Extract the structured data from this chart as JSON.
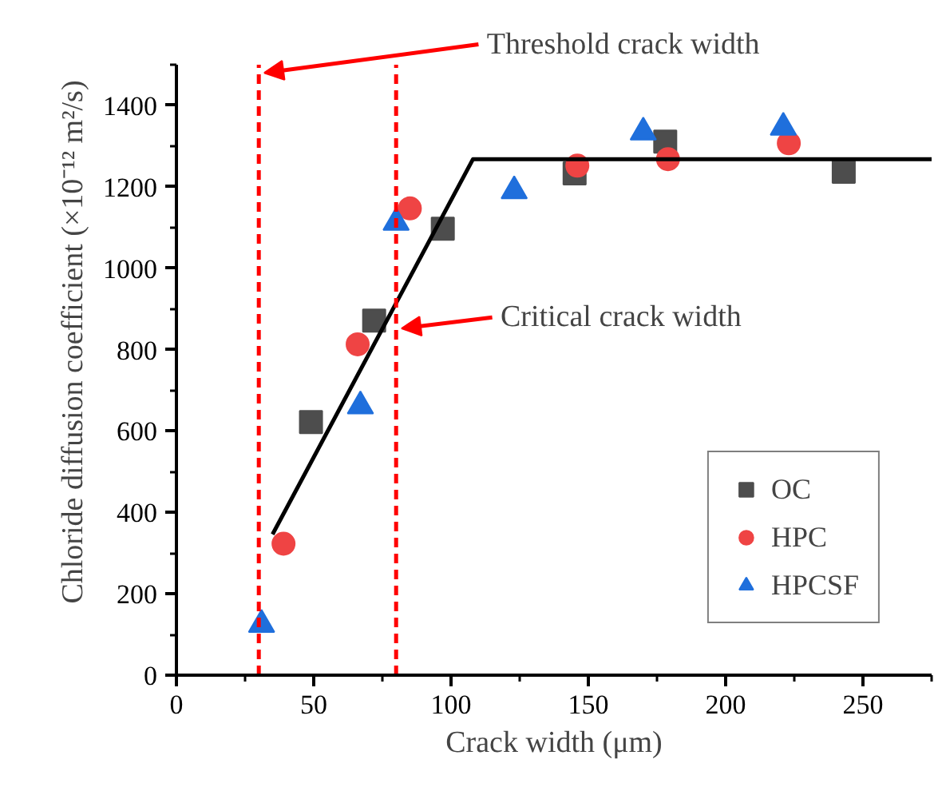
{
  "chart_data": {
    "type": "scatter",
    "xlabel": "Crack width (μm)",
    "ylabel": "Chloride diffusion coefficient (×10⁻¹² m²/s)",
    "xlim": [
      0,
      275
    ],
    "ylim": [
      0,
      1500
    ],
    "xticks": [
      0,
      50,
      100,
      150,
      200,
      250
    ],
    "yticks": [
      0,
      200,
      400,
      600,
      800,
      1000,
      1200,
      1400
    ],
    "grid": false,
    "legend": "bottom right",
    "series": [
      {
        "name": "OC",
        "color": "#4d4d4d",
        "marker": "square",
        "x": [
          49,
          72,
          97,
          145,
          178,
          243
        ],
        "values": [
          622,
          871,
          1097,
          1233,
          1311,
          1237
        ]
      },
      {
        "name": "HPC",
        "color": "#ef4444",
        "marker": "circle",
        "x": [
          39,
          66,
          85,
          146,
          179,
          223
        ],
        "values": [
          323,
          813,
          1147,
          1252,
          1268,
          1307
        ]
      },
      {
        "name": "HPCSF",
        "color": "#1f6fdc",
        "marker": "triangle",
        "x": [
          31,
          67,
          80,
          123,
          170,
          221
        ],
        "values": [
          124,
          661,
          1112,
          1190,
          1334,
          1346
        ]
      },
      {
        "type": "line",
        "color": "#000000",
        "x": [
          35,
          108,
          275
        ],
        "values": [
          346,
          1268,
          1268
        ]
      }
    ],
    "ref_lines": [
      {
        "axis": "x",
        "value": 30,
        "color": "#ff0000",
        "line_style": "dashed"
      },
      {
        "axis": "x",
        "value": 80,
        "color": "#ff0000",
        "line_style": "dashed"
      }
    ],
    "annotations": [
      {
        "text": "Threshold crack width",
        "x": 30,
        "y": 1480
      },
      {
        "text": "Critical crack width",
        "x": 80,
        "y": 852
      }
    ]
  }
}
